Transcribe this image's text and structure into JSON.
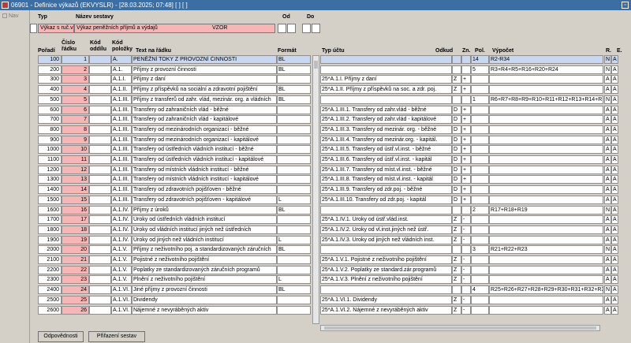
{
  "window": {
    "title": "06901 - Definice výkazů (EKVYSLR) - [28.03.2025; 07:48]  [ ]  [ ]"
  },
  "nav": {
    "label": "Nav"
  },
  "header": {
    "typ_label": "Typ",
    "nazev_label": "Název sestavy",
    "od_label": "Od",
    "do_label": "Do",
    "typ_value": "Výkaz s ruč.vstupy",
    "nazev_value": "Výkaz peněžních příjmů a výdajů",
    "vzor": "VZOR"
  },
  "columns": {
    "poradi": "Pořadí",
    "cislo_radku": "Číslo řádku",
    "kod_oddilu": "Kód oddílu",
    "kod_polozky": "Kód položky",
    "text": "Text na řádku",
    "format": "Formát",
    "typ_uctu": "Typ účtu",
    "odkud": "Odkud",
    "zn": "Zn.",
    "pol": "Pol.",
    "vypocet": "Výpočet",
    "r": "R.",
    "e": "E."
  },
  "rows": [
    {
      "poradi": "100",
      "cislo": "1",
      "oddil": "",
      "polozka": "A.",
      "text": "PENĚŽNÍ TOKY Z PROVOZNÍ ČINNOSTI",
      "format": "BL",
      "typ_uctu": "",
      "odkud": "",
      "zn": "",
      "pol": "14",
      "vypocet": "R2-R34",
      "r": "N",
      "e": "A"
    },
    {
      "poradi": "200",
      "cislo": "2",
      "oddil": "",
      "polozka": "A.1.",
      "text": "Příjmy z provozní činnosti",
      "format": "BL",
      "typ_uctu": "",
      "odkud": "",
      "zn": "",
      "pol": "5",
      "vypocet": "R3+R4+R5+R16+R20+R24",
      "r": "N",
      "e": "A"
    },
    {
      "poradi": "300",
      "cislo": "3",
      "oddil": "",
      "polozka": "A.1.I.",
      "text": "Příjmy z daní",
      "format": "",
      "typ_uctu": "25*A.1.I. Příjmy z daní",
      "odkud": "Z",
      "zn": "+",
      "pol": "",
      "vypocet": "",
      "r": "A",
      "e": "A"
    },
    {
      "poradi": "400",
      "cislo": "4",
      "oddil": "",
      "polozka": "A.1.II.",
      "text": "Příjmy z příspěvků na sociální a zdravotní pojištění",
      "format": "BL",
      "typ_uctu": "25*A.1.II. Příjmy z příspěvků na soc. a zdr. poj.",
      "odkud": "Z",
      "zn": "+",
      "pol": "",
      "vypocet": "",
      "r": "A",
      "e": "A"
    },
    {
      "poradi": "500",
      "cislo": "5",
      "oddil": "",
      "polozka": "A.1.III.",
      "text": "Příjmy z transferů od zahr. vlád, mezinár. org. a vládních",
      "format": "BL",
      "typ_uctu": "",
      "odkud": "",
      "zn": "",
      "pol": "1",
      "vypocet": "R6+R7+R8+R9+R10+R11+R12+R13+R14+R15",
      "r": "N",
      "e": "A"
    },
    {
      "poradi": "600",
      "cislo": "6",
      "oddil": "",
      "polozka": "A.1.III.",
      "text": "Transfery od zahraničních vlád - běžné",
      "format": "",
      "typ_uctu": "25*A.1.III.1. Transfery od zahr.vlád - běžné",
      "odkud": "D",
      "zn": "+",
      "pol": "",
      "vypocet": "",
      "r": "A",
      "e": "A"
    },
    {
      "poradi": "700",
      "cislo": "7",
      "oddil": "",
      "polozka": "A.1.III.",
      "text": "Transfery od zahraničních vlád  - kapitálové",
      "format": "",
      "typ_uctu": "25*A.1.III.2. Transfery od zahr.vlád - kapitálové",
      "odkud": "D",
      "zn": "+",
      "pol": "",
      "vypocet": "",
      "r": "A",
      "e": "A"
    },
    {
      "poradi": "800",
      "cislo": "8",
      "oddil": "",
      "polozka": "A.1.III.",
      "text": "Transfery od mezinárodních organizací - běžné",
      "format": "",
      "typ_uctu": "25*A.1.III.3. Transfery od mezinár. org. - běžné",
      "odkud": "D",
      "zn": "+",
      "pol": "",
      "vypocet": "",
      "r": "A",
      "e": "A"
    },
    {
      "poradi": "900",
      "cislo": "9",
      "oddil": "",
      "polozka": "A.1.III.",
      "text": "Transfery od mezinárodních organizací - kapitálové",
      "format": "",
      "typ_uctu": "25*A.1.III.4. Transfery od mezinár.org. - kapitál.",
      "odkud": "D",
      "zn": "+",
      "pol": "",
      "vypocet": "",
      "r": "A",
      "e": "A"
    },
    {
      "poradi": "1000",
      "cislo": "10",
      "oddil": "",
      "polozka": "A.1.III.",
      "text": "Transfery od ústředních vládních institucí - běžné",
      "format": "",
      "typ_uctu": "25*A.1.III.5. Transfery od ústř.vl.inst. - běžné",
      "odkud": "D",
      "zn": "+",
      "pol": "",
      "vypocet": "",
      "r": "A",
      "e": "A"
    },
    {
      "poradi": "1100",
      "cislo": "11",
      "oddil": "",
      "polozka": "A.1.III.",
      "text": "Transfery od ústředních vládních institucí - kapitálové",
      "format": "",
      "typ_uctu": "25*A.1.III.6. Transfery od ústř.vl.inst. - kapitál",
      "odkud": "D",
      "zn": "+",
      "pol": "",
      "vypocet": "",
      "r": "A",
      "e": "A"
    },
    {
      "poradi": "1200",
      "cislo": "12",
      "oddil": "",
      "polozka": "A.1.III.",
      "text": "Transfery od místních vládních institucí - běžné",
      "format": "",
      "typ_uctu": "25*A.1.III.7. Transfery od míst.vl.inst. - běžné",
      "odkud": "D",
      "zn": "+",
      "pol": "",
      "vypocet": "",
      "r": "A",
      "e": "A"
    },
    {
      "poradi": "1300",
      "cislo": "13",
      "oddil": "",
      "polozka": "A.1.III.",
      "text": "Transfery od místních vládních institucí - kapitálové",
      "format": "",
      "typ_uctu": "25*A.1.III.8. Transfery od míst.vl.inst. - kapitál",
      "odkud": "D",
      "zn": "+",
      "pol": "",
      "vypocet": "",
      "r": "A",
      "e": "A"
    },
    {
      "poradi": "1400",
      "cislo": "14",
      "oddil": "",
      "polozka": "A.1.III.",
      "text": "Transfery od zdravotních pojišťoven - běžné",
      "format": "",
      "typ_uctu": "25*A.1.III.9. Transfery od zdr.poj. - běžné",
      "odkud": "D",
      "zn": "+",
      "pol": "",
      "vypocet": "",
      "r": "A",
      "e": "A"
    },
    {
      "poradi": "1500",
      "cislo": "15",
      "oddil": "",
      "polozka": "A.1.III.",
      "text": "Transfery od zdravotních pojišťoven - kapitálové",
      "format": "L",
      "typ_uctu": "25*A.1.III.10. Transfery od zdr.poj. - kapitál",
      "odkud": "D",
      "zn": "+",
      "pol": "",
      "vypocet": "",
      "r": "A",
      "e": "A"
    },
    {
      "poradi": "1600",
      "cislo": "16",
      "oddil": "",
      "polozka": "A.1.IV.",
      "text": "Příjmy z úroků",
      "format": "BL",
      "typ_uctu": "",
      "odkud": "",
      "zn": "",
      "pol": "2",
      "vypocet": "R17+R18+R19",
      "r": "N",
      "e": "A"
    },
    {
      "poradi": "1700",
      "cislo": "17",
      "oddil": "",
      "polozka": "A.1.IV.",
      "text": "Úroky od ústředních vládních institucí",
      "format": "",
      "typ_uctu": "25*A.1.IV.1. Úroky od ústř.vlád.inst.",
      "odkud": "Z",
      "zn": "-",
      "pol": "",
      "vypocet": "",
      "r": "A",
      "e": "A"
    },
    {
      "poradi": "1800",
      "cislo": "18",
      "oddil": "",
      "polozka": "A.1.IV.",
      "text": "Úroky od vládních institucí jiných než ústředních",
      "format": "",
      "typ_uctu": "25*A.1.IV.2. Úroky od vl.inst.jiných než ústř.",
      "odkud": "Z",
      "zn": "-",
      "pol": "",
      "vypocet": "",
      "r": "A",
      "e": "A"
    },
    {
      "poradi": "1900",
      "cislo": "19",
      "oddil": "",
      "polozka": "A.1.IV.",
      "text": "Úroky od jiných než vládních institucí",
      "format": "L",
      "typ_uctu": "25*A.1.IV.3. Úroky od jiných než vládních inst.",
      "odkud": "Z",
      "zn": "-",
      "pol": "",
      "vypocet": "",
      "r": "A",
      "e": "A"
    },
    {
      "poradi": "2000",
      "cislo": "20",
      "oddil": "",
      "polozka": "A.1.V.",
      "text": "Příjmy z neživotního poj. a standardizovaných záručních",
      "format": "BL",
      "typ_uctu": "",
      "odkud": "",
      "zn": "",
      "pol": "3",
      "vypocet": "R21+R22+R23",
      "r": "N",
      "e": "A"
    },
    {
      "poradi": "2100",
      "cislo": "21",
      "oddil": "",
      "polozka": "A.1.V.",
      "text": "Pojistné z neživotního pojištění",
      "format": "",
      "typ_uctu": "25*A.1.V.1. Pojistné z neživotního pojištění",
      "odkud": "Z",
      "zn": "-",
      "pol": "",
      "vypocet": "",
      "r": "A",
      "e": "A"
    },
    {
      "poradi": "2200",
      "cislo": "22",
      "oddil": "",
      "polozka": "A.1.V.",
      "text": "Poplatky ze standardizovaných záručních programů",
      "format": "",
      "typ_uctu": "25*A.1.V.2. Poplatky ze standard.zár.programů",
      "odkud": "Z",
      "zn": "-",
      "pol": "",
      "vypocet": "",
      "r": "A",
      "e": "A"
    },
    {
      "poradi": "2300",
      "cislo": "23",
      "oddil": "",
      "polozka": "A.1.V.",
      "text": "Plnění z neživotního pojištění",
      "format": "L",
      "typ_uctu": "25*A.1.V.3. Plnění z neživotního pojištění",
      "odkud": "Z",
      "zn": "-",
      "pol": "",
      "vypocet": "",
      "r": "A",
      "e": "A"
    },
    {
      "poradi": "2400",
      "cislo": "24",
      "oddil": "",
      "polozka": "A.1.VI.",
      "text": "Jiné příjmy z provozní činnosti",
      "format": "BL",
      "typ_uctu": "",
      "odkud": "",
      "zn": "",
      "pol": "4",
      "vypocet": "R25+R26+R27+R28+R29+R30+R31+R32+R33",
      "r": "N",
      "e": "A"
    },
    {
      "poradi": "2500",
      "cislo": "25",
      "oddil": "",
      "polozka": "A.1.VI.",
      "text": "Dividendy",
      "format": "",
      "typ_uctu": "25*A.1.VI.1. Dividendy",
      "odkud": "Z",
      "zn": "-",
      "pol": "",
      "vypocet": "",
      "r": "A",
      "e": "A"
    },
    {
      "poradi": "2600",
      "cislo": "26",
      "oddil": "",
      "polozka": "A.1.VI.",
      "text": "Nájemné z nevyráběných aktiv",
      "format": "",
      "typ_uctu": "25*A.1.VI.2. Nájemné z nevyráběných aktiv",
      "odkud": "Z",
      "zn": "-",
      "pol": "",
      "vypocet": "",
      "r": "A",
      "e": "A"
    }
  ],
  "buttons": {
    "odpovednosti": "Odpovědnosti",
    "prirazeni": "Přiřazení sestav"
  }
}
